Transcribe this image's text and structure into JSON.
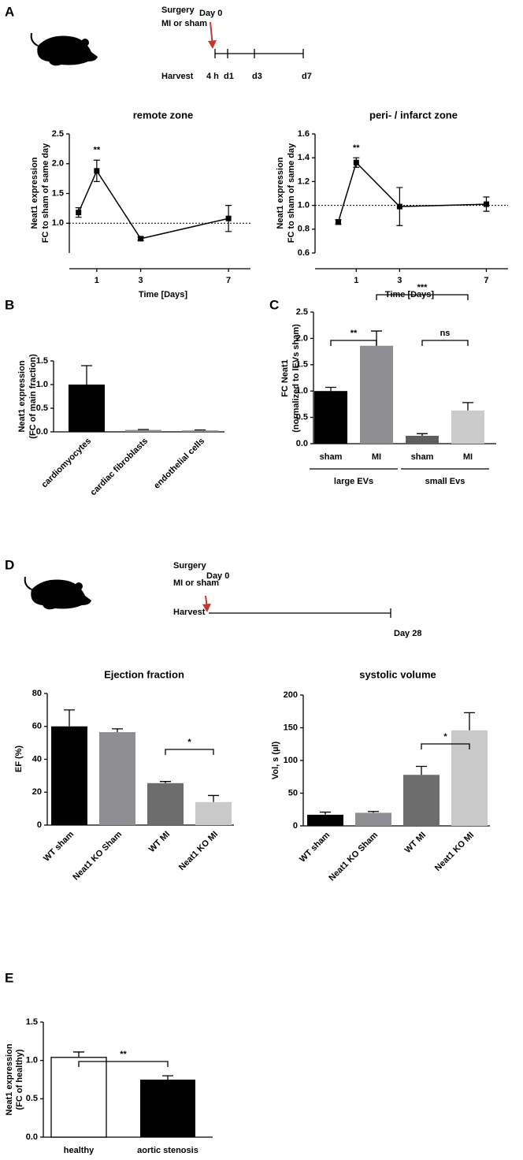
{
  "panel_labels": [
    "A",
    "B",
    "C",
    "D",
    "E"
  ],
  "timeline_A": {
    "surgery": "Surgery",
    "surgery_type": "MI or sham",
    "day0": "Day 0",
    "harvest": "Harvest",
    "times": [
      "4 h",
      "d1",
      "d3",
      "d7"
    ]
  },
  "timeline_D": {
    "surgery": "Surgery",
    "surgery_type": "MI or sham",
    "day0": "Day 0",
    "harvest": "Harvest",
    "end": "Day 28"
  },
  "chart_data": [
    {
      "type": "line",
      "title": "remote zone",
      "ylabel": [
        "Neat1 expression",
        "FC to sham of same day"
      ],
      "xlabel": "Time [Days]",
      "x": [
        0.17,
        1,
        3,
        7
      ],
      "xlim": [
        -0.25,
        8
      ],
      "xticks": [
        1,
        3,
        7
      ],
      "ylim": [
        0.5,
        2.5
      ],
      "yticks": [
        {
          "value": 1,
          "label": "1.0"
        },
        {
          "value": 1.5,
          "label": "1.5"
        },
        {
          "value": 2,
          "label": "2.0"
        },
        {
          "value": 2.5,
          "label": "2.5"
        }
      ],
      "reference_line": 1,
      "series": [
        {
          "color": "#000000",
          "values": [
            1.18,
            1.88,
            0.74,
            1.08
          ],
          "errors": [
            0.08,
            0.18,
            0.03,
            0.22
          ]
        }
      ],
      "annotations": [
        "**"
      ]
    },
    {
      "type": "line",
      "title": "peri- / infarct zone",
      "ylabel": [
        "Neat1 expression",
        "FC to sham of same day"
      ],
      "xlabel": "Time [Days]",
      "x": [
        0.17,
        1,
        3,
        7
      ],
      "xlim": [
        -0.9,
        8
      ],
      "xticks": [
        1,
        3,
        7
      ],
      "ylim": [
        0.6,
        1.6
      ],
      "yticks": [
        {
          "value": 0.6,
          "label": "0.6"
        },
        {
          "value": 0.8,
          "label": "0.8"
        },
        {
          "value": 1,
          "label": "1.0"
        },
        {
          "value": 1.2,
          "label": "1.2"
        },
        {
          "value": 1.4,
          "label": "1.4"
        },
        {
          "value": 1.6,
          "label": "1.6"
        }
      ],
      "reference_line": 1,
      "series": [
        {
          "color": "#000000",
          "values": [
            0.86,
            1.36,
            0.99,
            1.01
          ],
          "errors": [
            0.02,
            0.04,
            0.16,
            0.06
          ]
        }
      ],
      "annotations": [
        "**"
      ]
    },
    {
      "type": "bar",
      "ylabel": [
        "Neat1 expression",
        "(FC of main fraction)"
      ],
      "categories": [
        "cardiomyocytes",
        "cardiac fibroblasts",
        "endothelial cells"
      ],
      "values": [
        1.0,
        0.04,
        0.03
      ],
      "errors": [
        0.4,
        0.01,
        0.01
      ],
      "colors": [
        "#000000",
        "#8a8a8a",
        "#8a8a8a"
      ],
      "ylim": [
        0,
        1.5
      ],
      "yticks": [
        {
          "value": 0,
          "label": "0.0"
        },
        {
          "value": 0.5,
          "label": "0.5"
        },
        {
          "value": 1,
          "label": "1.0"
        },
        {
          "value": 1.5,
          "label": "1.5"
        }
      ]
    },
    {
      "type": "bar",
      "ylabel": [
        "FC Neat1",
        "(normalized to lEVs sham)"
      ],
      "categories": [
        "sham",
        "MI",
        "sham",
        "MI"
      ],
      "groups": [
        "large EVs",
        "small Evs"
      ],
      "values": [
        1.0,
        1.86,
        0.15,
        0.63
      ],
      "errors": [
        0.07,
        0.28,
        0.04,
        0.15
      ],
      "colors": [
        "#000000",
        "#8e8e93",
        "#5e5e5e",
        "#cbcbcb"
      ],
      "ylim": [
        0,
        2.5
      ],
      "yticks": [
        {
          "value": 0,
          "label": "0.0"
        },
        {
          "value": 0.5,
          "label": "0.5"
        },
        {
          "value": 1,
          "label": "1.0"
        },
        {
          "value": 1.5,
          "label": "1.5"
        },
        {
          "value": 2,
          "label": "2.0"
        },
        {
          "value": 2.5,
          "label": "2.5"
        }
      ],
      "annotations": [
        "**",
        "***",
        "ns"
      ]
    },
    {
      "type": "bar",
      "title": "Ejection fraction",
      "ylabel": [
        "EF (%)"
      ],
      "categories": [
        "WT sham",
        "Neat1 KO Sham",
        "WT MI",
        "Neat1 KO MI"
      ],
      "values": [
        60,
        56.5,
        25.5,
        14
      ],
      "errors": [
        10,
        2,
        1,
        4
      ],
      "colors": [
        "#000000",
        "#8e8e93",
        "#6d6d6d",
        "#c9c9c9"
      ],
      "ylim": [
        0,
        80
      ],
      "yticks": [
        0,
        20,
        40,
        60,
        80
      ],
      "annotations": [
        "*"
      ]
    },
    {
      "type": "bar",
      "title": "systolic volume",
      "ylabel": [
        "Vol, s (µl)"
      ],
      "categories": [
        "WT sham",
        "Neat1 KO Sham",
        "WT MI",
        "Neat1 KO MI"
      ],
      "values": [
        17,
        20,
        78,
        146
      ],
      "errors": [
        4,
        2,
        13,
        27
      ],
      "colors": [
        "#000000",
        "#8e8e93",
        "#6d6d6d",
        "#c9c9c9"
      ],
      "ylim": [
        0,
        200
      ],
      "yticks": [
        0,
        50,
        100,
        150,
        200
      ],
      "annotations": [
        "*"
      ]
    },
    {
      "type": "bar",
      "ylabel": [
        "Neat1 expression",
        "(FC of healthy)"
      ],
      "categories": [
        "healthy",
        "aortic stenosis"
      ],
      "values": [
        1.04,
        0.75
      ],
      "errors": [
        0.07,
        0.05
      ],
      "colors": [
        "#ffffff",
        "#000000"
      ],
      "ylim": [
        0,
        1.5
      ],
      "yticks": [
        {
          "value": 0,
          "label": "0.0"
        },
        {
          "value": 0.5,
          "label": "0.5"
        },
        {
          "value": 1,
          "label": "1.0"
        },
        {
          "value": 1.5,
          "label": "1.5"
        }
      ],
      "annotations": [
        "**"
      ]
    }
  ]
}
